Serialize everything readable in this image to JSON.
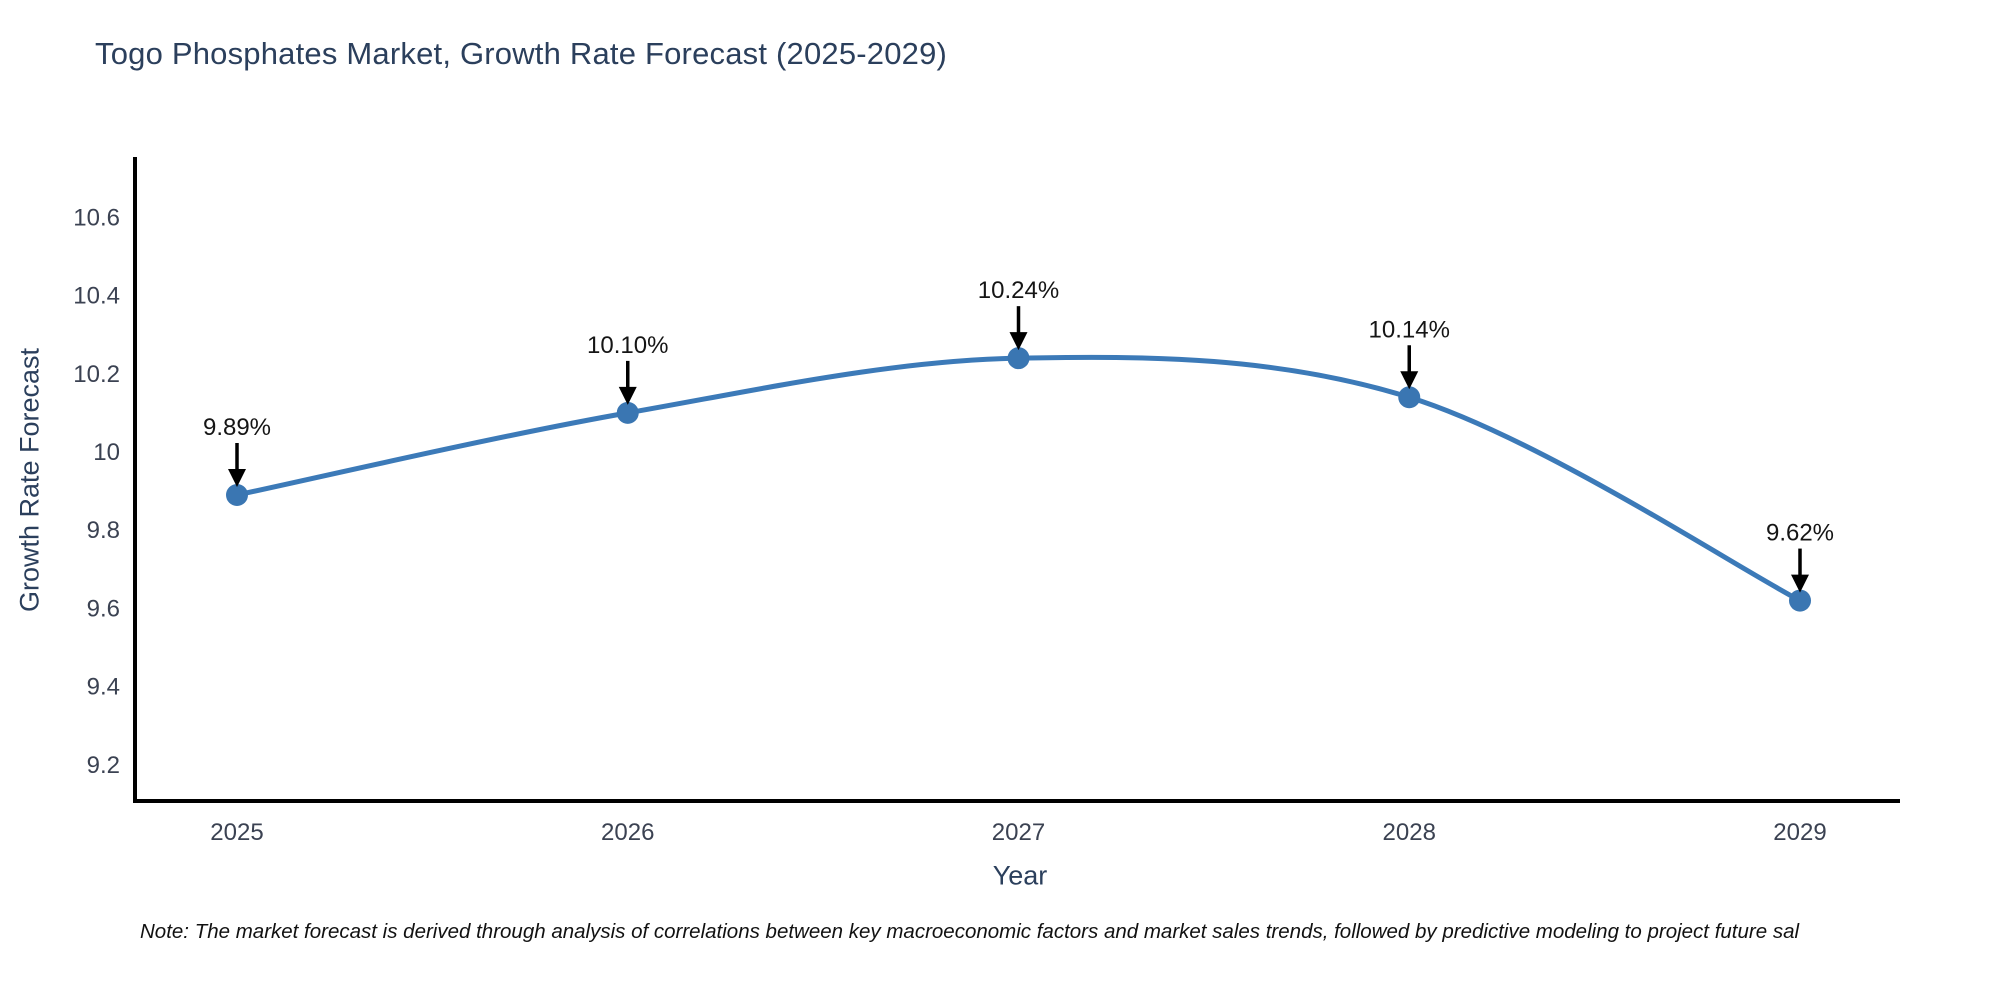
{
  "figure": {
    "title": "Togo Phosphates Market, Growth Rate Forecast (2025-2029)",
    "note": "Note: The market forecast is derived through analysis of correlations between key macroeconomic factors and market sales trends, followed by predictive modeling to project future sal"
  },
  "chart_data": {
    "type": "line",
    "line_shape": "spline",
    "markers": true,
    "grid": false,
    "legend": false,
    "title": "Togo Phosphates Market, Growth Rate Forecast (2025-2029)",
    "xlabel": "Year",
    "ylabel": "Growth Rate Forecast",
    "x": [
      2025,
      2026,
      2027,
      2028,
      2029
    ],
    "values": [
      9.89,
      10.1,
      10.24,
      10.14,
      9.62
    ],
    "point_labels": [
      "9.89%",
      "10.10%",
      "10.24%",
      "10.14%",
      "9.62%"
    ],
    "xtick_labels": [
      "2025",
      "2026",
      "2027",
      "2028",
      "2029"
    ],
    "yticks": [
      9.2,
      9.4,
      9.6,
      9.8,
      10,
      10.2,
      10.4,
      10.6
    ],
    "ytick_labels": [
      "9.2",
      "9.4",
      "9.6",
      "9.8",
      "10",
      "10.2",
      "10.4",
      "10.6"
    ],
    "xlim": [
      2024.73,
      2029.26
    ],
    "ylim": [
      9.1,
      10.75
    ],
    "colors": {
      "line": "#3c7ab8",
      "marker": "#3a76b2",
      "axis_line": "#000000",
      "tick_text": "#3b4252",
      "title_text": "#2b3f5c",
      "annotation_text": "#151515",
      "annotation_arrow": "#000000",
      "background": "#ffffff"
    }
  }
}
